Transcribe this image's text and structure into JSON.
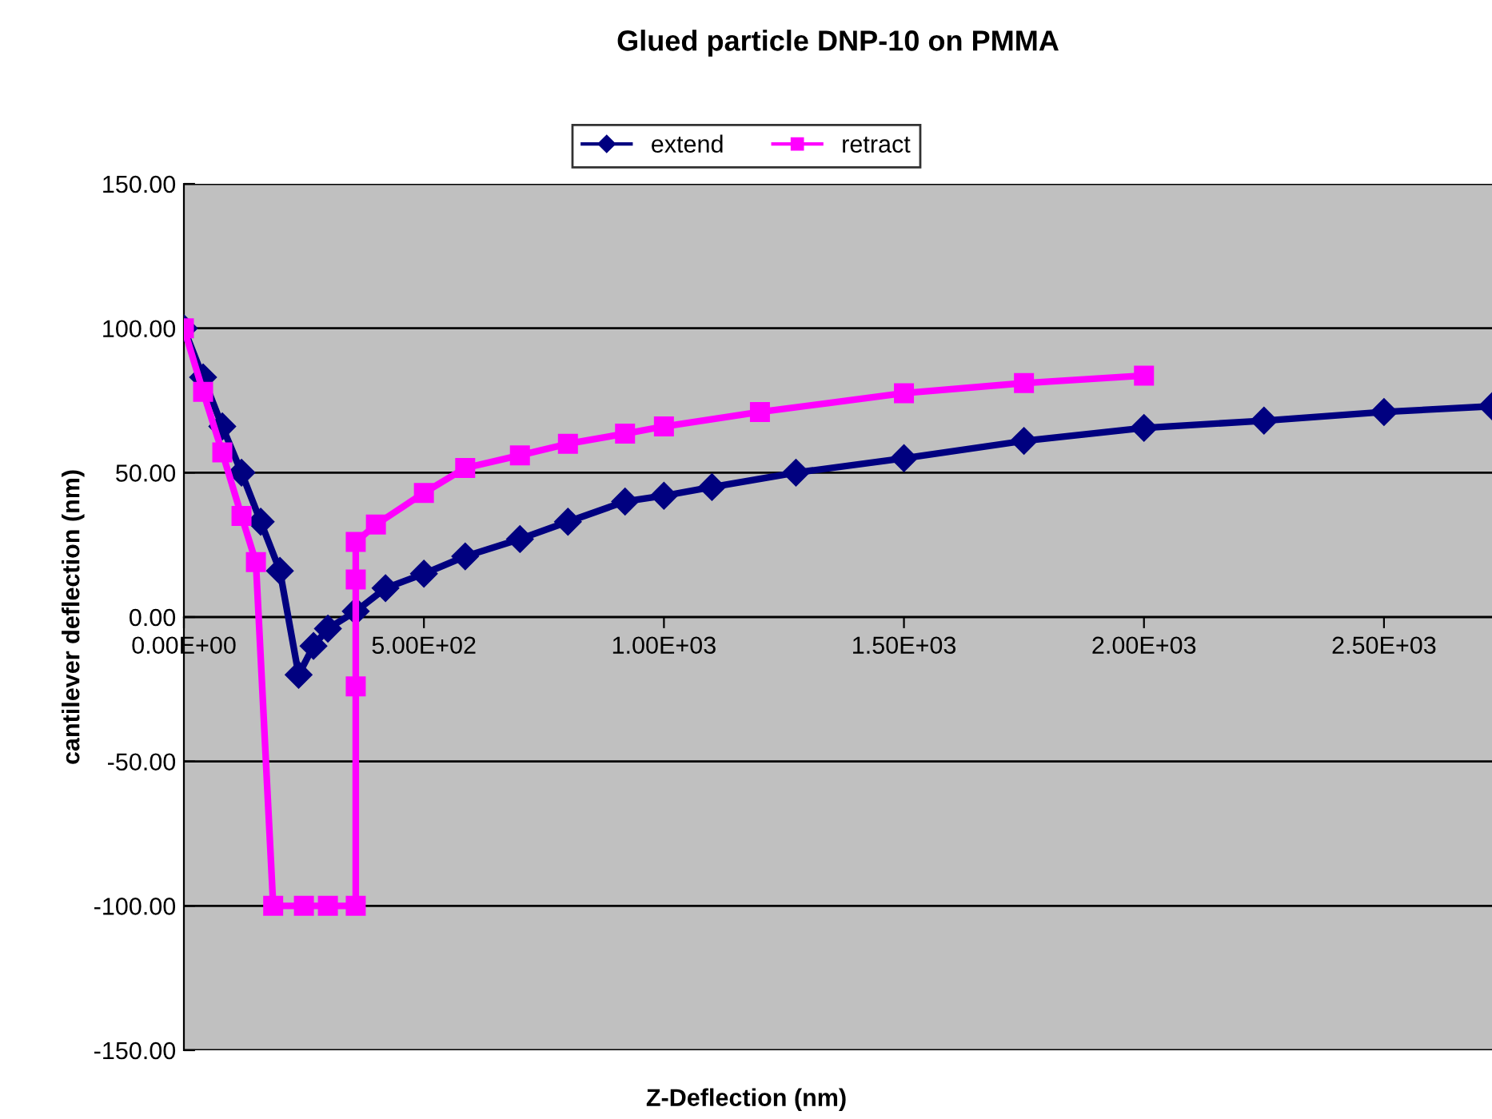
{
  "chart_data": {
    "type": "line",
    "title": "Glued particle DNP-10 on PMMA",
    "xlabel": "Z-Deflection (nm)",
    "ylabel": "cantilever deflection (nm)",
    "series": [
      {
        "name": "extend",
        "color": "#000080",
        "marker": "diamond",
        "x": [
          0,
          40,
          80,
          120,
          160,
          200,
          239,
          270,
          300,
          358,
          420,
          500,
          586,
          700,
          800,
          919,
          1000,
          1100,
          1275,
          1500,
          1750,
          2000,
          2250,
          2500,
          2725
        ],
        "values": [
          100,
          83,
          66,
          50,
          33,
          16,
          -20,
          -10,
          -4,
          2,
          10,
          15,
          21,
          27,
          33,
          40,
          42,
          45,
          50,
          55,
          61,
          65.5,
          68,
          71,
          73
        ]
      },
      {
        "name": "retract",
        "color": "#ff00ff",
        "marker": "square",
        "x": [
          0,
          40,
          80,
          120,
          150,
          186,
          250,
          300,
          358,
          358,
          358,
          358,
          400,
          500,
          586,
          700,
          800,
          919,
          1000,
          1200,
          1500,
          1750,
          2000
        ],
        "values": [
          100,
          78,
          57,
          35,
          19,
          -100,
          -100,
          -100,
          -100,
          -24,
          13,
          26,
          32,
          43,
          51.6,
          56,
          60,
          63.5,
          66,
          71,
          77.5,
          81,
          83.6
        ]
      }
    ],
    "xlim": [
      0,
      2725
    ],
    "xticks": [
      {
        "value": 0,
        "label": "0.00E+00"
      },
      {
        "value": 500,
        "label": "5.00E+02"
      },
      {
        "value": 1000,
        "label": "1.00E+03"
      },
      {
        "value": 1500,
        "label": "1.50E+03"
      },
      {
        "value": 2000,
        "label": "2.00E+03"
      },
      {
        "value": 2500,
        "label": "2.50E+03"
      }
    ],
    "ylim": [
      -150,
      150
    ],
    "yticks": [
      {
        "value": -150,
        "label": "-150.00"
      },
      {
        "value": -100,
        "label": "-100.00"
      },
      {
        "value": -50,
        "label": "-50.00"
      },
      {
        "value": 0,
        "label": "0.00"
      },
      {
        "value": 50,
        "label": "50.00"
      },
      {
        "value": 100,
        "label": "100.00"
      },
      {
        "value": 150,
        "label": "150.00"
      }
    ],
    "grid": "y",
    "legend": "top"
  }
}
